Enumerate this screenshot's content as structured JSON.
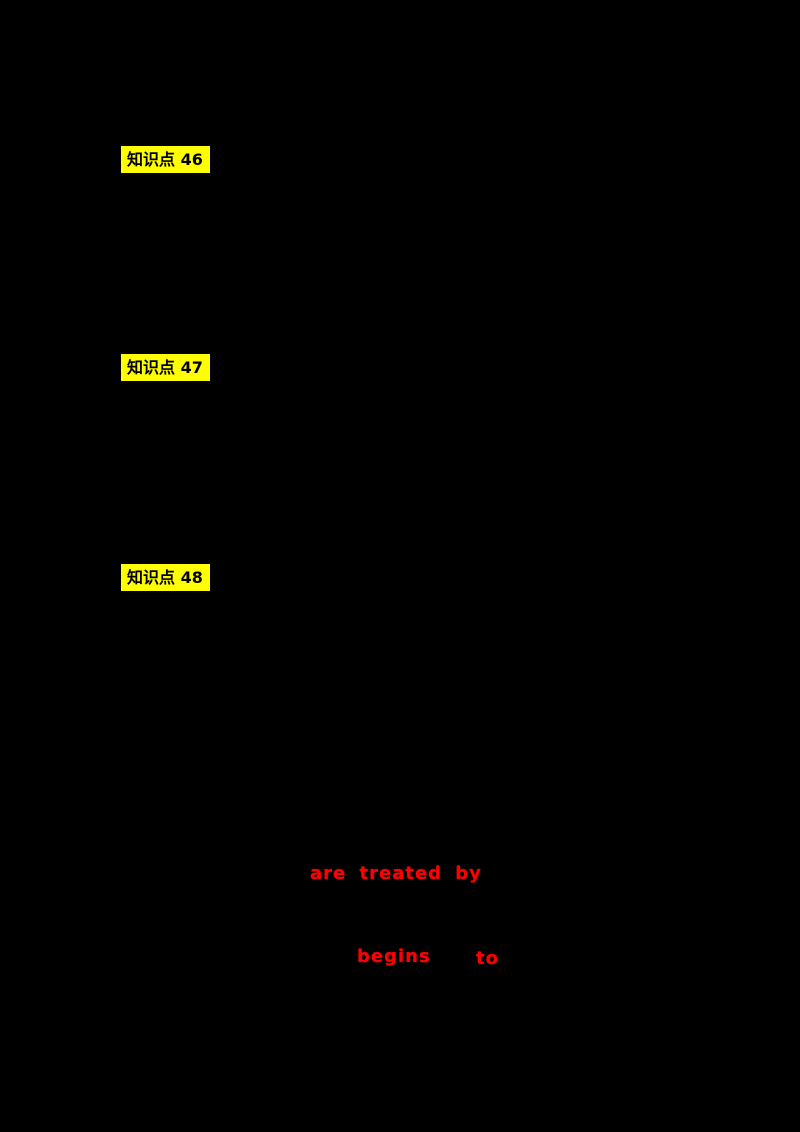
{
  "page": {
    "background_color": "#000000",
    "description": "Study-notes document page rendered on black; only highlighted headings and red answer text are visible"
  },
  "colors": {
    "highlight_background": "#ffff00",
    "highlight_text": "#000000",
    "answer_text": "#ff0000"
  },
  "knowledge_points": [
    {
      "label": "知识点 46"
    },
    {
      "label": "知识点 47"
    },
    {
      "label": "知识点 48"
    }
  ],
  "red_answers": [
    {
      "text": "are treated by"
    },
    {
      "text": "begins"
    },
    {
      "text": "to"
    }
  ]
}
